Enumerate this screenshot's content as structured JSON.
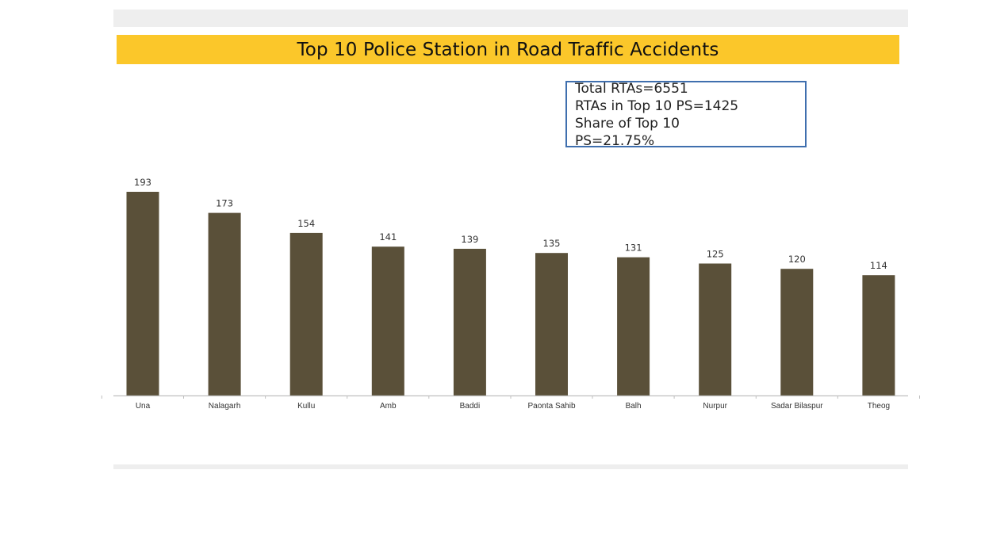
{
  "chart_data": {
    "type": "bar",
    "title": "Top 10 Police Station in Road Traffic Accidents",
    "categories": [
      "Una",
      "Nalagarh",
      "Kullu",
      "Amb",
      "Baddi",
      "Paonta Sahib",
      "Balh",
      "Nurpur",
      "Sadar Bilaspur",
      "Theog"
    ],
    "values": [
      193,
      173,
      154,
      141,
      139,
      135,
      131,
      125,
      120,
      114
    ],
    "data_labels": [
      "193",
      "173",
      "154",
      "141",
      "139",
      "135",
      "131",
      "125",
      "120",
      "114"
    ],
    "xlabel": "",
    "ylabel": "",
    "ylim": [
      0,
      193
    ],
    "grid": false,
    "legend": "none",
    "annotation": {
      "lines": [
        "Total RTAs=6551",
        "RTAs in Top 10 PS=1425",
        "Share of Top 10",
        "PS=21.75%"
      ]
    }
  },
  "colors": {
    "bar": "#5a5039",
    "title_band": "#fbc72a",
    "annotation_border": "#3f6fae",
    "axis": "#bfbfbf"
  }
}
